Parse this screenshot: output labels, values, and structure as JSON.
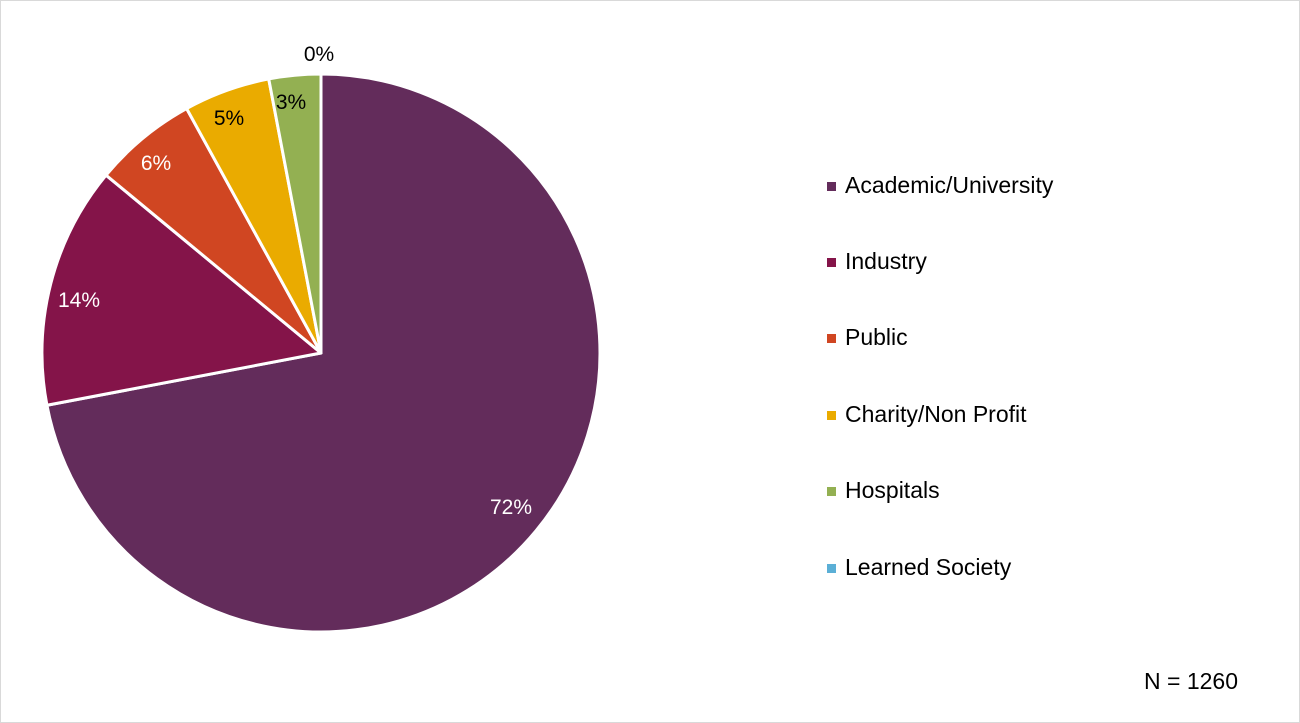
{
  "chart_data": {
    "type": "pie",
    "title": "",
    "categories": [
      "Academic/University",
      "Industry",
      "Public",
      "Charity/Non Profit",
      "Hospitals",
      "Learned Society"
    ],
    "values": [
      72,
      14,
      6,
      5,
      3,
      0
    ],
    "value_labels": [
      "72%",
      "14%",
      "6%",
      "5%",
      "3%",
      "0%"
    ],
    "colors": [
      "#632C5B",
      "#841449",
      "#D04622",
      "#EAAB00",
      "#93B052",
      "#5BAFD6"
    ],
    "label_colors": [
      "#ffffff",
      "#ffffff",
      "#ffffff",
      "#000000",
      "#000000",
      "#000000"
    ],
    "start_angle": "12 o'clock",
    "direction": "clockwise",
    "legend_position": "right",
    "annotation": "N = 1260"
  },
  "legend": {
    "items": [
      {
        "label": "Academic/University",
        "color": "#632C5B"
      },
      {
        "label": "Industry",
        "color": "#841449"
      },
      {
        "label": "Public",
        "color": "#D04622"
      },
      {
        "label": "Charity/Non Profit",
        "color": "#EAAB00"
      },
      {
        "label": "Hospitals",
        "color": "#93B052"
      },
      {
        "label": "Learned Society",
        "color": "#5BAFD6"
      }
    ]
  },
  "footer": {
    "n_label": "N = 1260"
  }
}
